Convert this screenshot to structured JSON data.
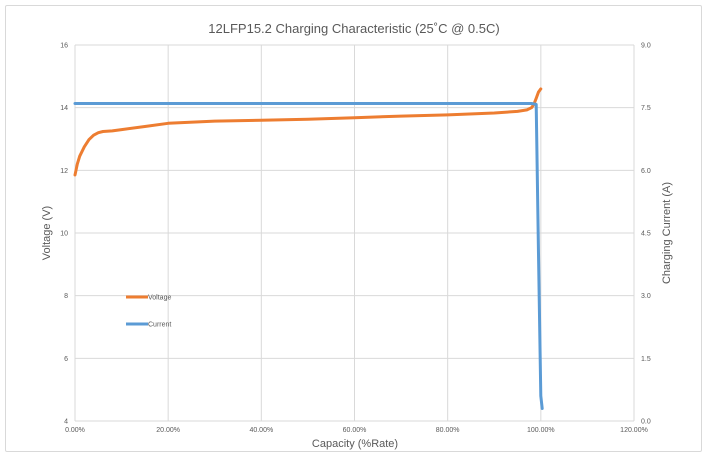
{
  "chart_data": {
    "type": "line",
    "title": "12LFP15.2 Charging Characteristic (25˚C @ 0.5C)",
    "xlabel": "Capacity (%Rate)",
    "ylabel": "Voltage (V)",
    "y2label": "Charging Current (A)",
    "xlim": [
      0,
      1.2
    ],
    "ylim": [
      4,
      16
    ],
    "y2lim": [
      0,
      9
    ],
    "x_ticks": [
      "0.00%",
      "20.00%",
      "40.00%",
      "60.00%",
      "80.00%",
      "100.00%",
      "120.00%"
    ],
    "y_ticks": [
      "4",
      "6",
      "8",
      "10",
      "12",
      "14",
      "16"
    ],
    "y2_ticks": [
      "0.0",
      "1.5",
      "3.0",
      "4.5",
      "6.0",
      "7.5",
      "9.0"
    ],
    "grid": true,
    "legend_position": "center-left",
    "series": [
      {
        "name": "Voltage",
        "axis": "left",
        "color": "#ed7d31",
        "x": [
          0,
          0.005,
          0.01,
          0.02,
          0.03,
          0.04,
          0.05,
          0.06,
          0.08,
          0.1,
          0.15,
          0.2,
          0.3,
          0.4,
          0.5,
          0.6,
          0.7,
          0.8,
          0.9,
          0.95,
          0.97,
          0.98,
          0.985,
          0.99,
          0.995,
          1.0
        ],
        "y": [
          11.85,
          12.2,
          12.45,
          12.75,
          12.98,
          13.12,
          13.2,
          13.24,
          13.26,
          13.3,
          13.4,
          13.5,
          13.57,
          13.6,
          13.63,
          13.68,
          13.73,
          13.77,
          13.83,
          13.88,
          13.93,
          14.0,
          14.1,
          14.3,
          14.5,
          14.6
        ]
      },
      {
        "name": "Current",
        "axis": "right",
        "color": "#5b9bd5",
        "x": [
          0,
          0.98,
          0.99,
          0.995,
          1.0,
          1.003
        ],
        "y": [
          7.6,
          7.6,
          7.58,
          4.0,
          0.6,
          0.3
        ]
      }
    ]
  }
}
